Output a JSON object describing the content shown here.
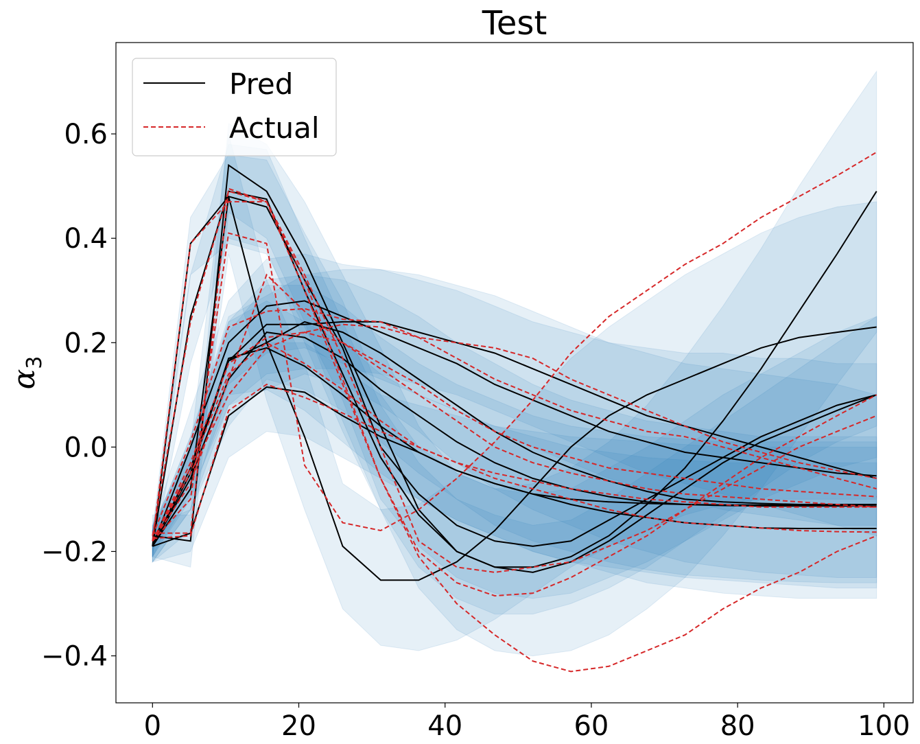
{
  "chart_data": {
    "type": "line",
    "title": "Test",
    "xlabel": "",
    "ylabel": "α",
    "ylabel_subscript": "3",
    "xlim": [
      -5,
      104
    ],
    "ylim": [
      -0.49,
      0.775
    ],
    "xticks": [
      0,
      20,
      40,
      60,
      80,
      100
    ],
    "xtick_labels": [
      "0",
      "20",
      "40",
      "60",
      "80",
      "100"
    ],
    "yticks": [
      -0.4,
      -0.2,
      0.0,
      0.2,
      0.4,
      0.6
    ],
    "ytick_labels": [
      "−0.4",
      "−0.2",
      "0.0",
      "0.2",
      "0.4",
      "0.6"
    ],
    "grid": false,
    "legend": {
      "placement": "top-left",
      "entries": [
        {
          "label": "Pred",
          "style": "solid",
          "color": "#000000"
        },
        {
          "label": "Actual",
          "style": "dashed",
          "color": "#d62728"
        }
      ]
    },
    "band_color": "#1f77b4",
    "x": [
      0,
      5.2,
      10.4,
      15.6,
      20.8,
      26,
      31.2,
      36.4,
      41.6,
      46.8,
      52,
      57.2,
      62.4,
      67.6,
      72.8,
      78,
      83.2,
      88.4,
      93.6,
      99
    ],
    "series": [
      {
        "pred": [
          -0.19,
          -0.165,
          0.06,
          0.115,
          0.105,
          0.06,
          0.02,
          -0.01,
          -0.045,
          -0.07,
          -0.09,
          -0.1,
          -0.105,
          -0.108,
          -0.11,
          -0.111,
          -0.111,
          -0.111,
          -0.111,
          -0.11
        ],
        "actual": [
          -0.175,
          -0.17,
          0.07,
          0.12,
          0.095,
          0.065,
          0.03,
          0,
          -0.03,
          -0.05,
          -0.065,
          -0.08,
          -0.09,
          -0.1,
          -0.105,
          -0.11,
          -0.115,
          -0.115,
          -0.115,
          -0.115
        ],
        "band_lo": [
          -0.22,
          -0.2,
          -0.02,
          0.03,
          0.02,
          -0.02,
          -0.06,
          -0.1,
          -0.14,
          -0.17,
          -0.2,
          -0.22,
          -0.23,
          -0.24,
          -0.25,
          -0.255,
          -0.26,
          -0.265,
          -0.27,
          -0.27
        ],
        "band_hi": [
          -0.15,
          -0.12,
          0.14,
          0.2,
          0.2,
          0.15,
          0.1,
          0.08,
          0.06,
          0.04,
          0.03,
          0.02,
          0.015,
          0.01,
          0.005,
          0.0,
          0.0,
          0.0,
          0.0,
          0.0
        ]
      },
      {
        "pred": [
          -0.19,
          -0.05,
          0.17,
          0.19,
          0.155,
          0.1,
          0.04,
          -0.01,
          -0.045,
          -0.07,
          -0.09,
          -0.11,
          -0.125,
          -0.135,
          -0.145,
          -0.15,
          -0.155,
          -0.156,
          -0.156,
          -0.156
        ],
        "actual": [
          -0.18,
          -0.04,
          0.14,
          0.2,
          0.16,
          0.11,
          0.05,
          0.0,
          -0.03,
          -0.06,
          -0.08,
          -0.1,
          -0.12,
          -0.135,
          -0.145,
          -0.15,
          -0.155,
          -0.16,
          -0.162,
          -0.163
        ],
        "band_lo": [
          -0.21,
          -0.1,
          0.1,
          0.11,
          0.07,
          0.01,
          -0.05,
          -0.1,
          -0.14,
          -0.17,
          -0.2,
          -0.22,
          -0.24,
          -0.26,
          -0.27,
          -0.28,
          -0.285,
          -0.29,
          -0.29,
          -0.29
        ],
        "band_hi": [
          -0.16,
          0.0,
          0.24,
          0.28,
          0.24,
          0.2,
          0.14,
          0.1,
          0.07,
          0.04,
          0.02,
          0.0,
          -0.01,
          -0.02,
          -0.025,
          -0.03,
          -0.03,
          -0.03,
          -0.03,
          -0.03
        ]
      },
      {
        "pred": [
          -0.19,
          0.0,
          0.2,
          0.27,
          0.28,
          0.25,
          0.22,
          0.19,
          0.16,
          0.12,
          0.09,
          0.06,
          0.03,
          0.01,
          -0.01,
          -0.02,
          -0.03,
          -0.04,
          -0.05,
          -0.055
        ],
        "actual": [
          -0.17,
          0.01,
          0.23,
          0.26,
          0.265,
          0.245,
          0.24,
          0.21,
          0.2,
          0.19,
          0.17,
          0.13,
          0.1,
          0.07,
          0.04,
          0.01,
          -0.01,
          -0.03,
          -0.045,
          -0.06
        ],
        "band_lo": [
          -0.21,
          -0.06,
          0.12,
          0.18,
          0.19,
          0.16,
          0.13,
          0.1,
          0.07,
          0.03,
          0.0,
          -0.03,
          -0.06,
          -0.08,
          -0.1,
          -0.12,
          -0.13,
          -0.14,
          -0.15,
          -0.15
        ],
        "band_hi": [
          -0.15,
          0.07,
          0.28,
          0.36,
          0.37,
          0.35,
          0.34,
          0.32,
          0.3,
          0.27,
          0.24,
          0.22,
          0.2,
          0.19,
          0.18,
          0.18,
          0.17,
          0.17,
          0.16,
          0.16
        ]
      },
      {
        "pred": [
          -0.19,
          -0.04,
          0.165,
          0.235,
          0.235,
          0.24,
          0.24,
          0.22,
          0.2,
          0.18,
          0.15,
          0.12,
          0.09,
          0.06,
          0.04,
          0.02,
          0.0,
          -0.02,
          -0.04,
          -0.06
        ],
        "actual": [
          -0.18,
          -0.03,
          0.16,
          0.21,
          0.22,
          0.235,
          0.23,
          0.21,
          0.17,
          0.13,
          0.1,
          0.07,
          0.05,
          0.03,
          0.02,
          0.0,
          -0.02,
          -0.04,
          -0.06,
          -0.08
        ],
        "band_lo": [
          -0.21,
          -0.09,
          0.08,
          0.14,
          0.15,
          0.15,
          0.14,
          0.12,
          0.1,
          0.07,
          0.04,
          0.01,
          -0.02,
          -0.05,
          -0.07,
          -0.09,
          -0.11,
          -0.13,
          -0.15,
          -0.17
        ],
        "band_hi": [
          -0.16,
          0.02,
          0.24,
          0.32,
          0.33,
          0.34,
          0.34,
          0.33,
          0.31,
          0.29,
          0.26,
          0.23,
          0.2,
          0.18,
          0.16,
          0.15,
          0.14,
          0.13,
          0.12,
          0.1
        ]
      },
      {
        "pred": [
          -0.19,
          0.25,
          0.49,
          0.475,
          0.3,
          0.14,
          -0.02,
          -0.13,
          -0.2,
          -0.23,
          -0.24,
          -0.22,
          -0.18,
          -0.13,
          -0.08,
          -0.03,
          0.01,
          0.04,
          0.07,
          0.1
        ],
        "actual": [
          -0.17,
          0.24,
          0.49,
          0.47,
          0.3,
          0.12,
          -0.06,
          -0.2,
          -0.26,
          -0.285,
          -0.28,
          -0.25,
          -0.21,
          -0.17,
          -0.12,
          -0.07,
          -0.02,
          0.02,
          0.06,
          0.1
        ],
        "band_lo": [
          -0.21,
          0.16,
          0.4,
          0.38,
          0.2,
          0.03,
          -0.12,
          -0.23,
          -0.29,
          -0.32,
          -0.32,
          -0.3,
          -0.27,
          -0.23,
          -0.18,
          -0.13,
          -0.08,
          -0.03,
          0.01,
          0.04
        ],
        "band_hi": [
          -0.16,
          0.33,
          0.58,
          0.57,
          0.4,
          0.24,
          0.08,
          -0.03,
          -0.1,
          -0.13,
          -0.15,
          -0.14,
          -0.1,
          -0.05,
          0.0,
          0.05,
          0.1,
          0.15,
          0.2,
          0.25
        ]
      },
      {
        "pred": [
          -0.19,
          0.39,
          0.48,
          0.46,
          0.32,
          0.19,
          0.0,
          -0.09,
          -0.15,
          -0.18,
          -0.19,
          -0.18,
          -0.14,
          -0.1,
          -0.06,
          -0.02,
          0.02,
          0.05,
          0.08,
          0.1
        ],
        "actual": [
          -0.18,
          0.39,
          0.47,
          0.47,
          0.33,
          0.17,
          0.0,
          -0.18,
          -0.23,
          -0.24,
          -0.23,
          -0.22,
          -0.19,
          -0.16,
          -0.12,
          -0.08,
          -0.04,
          0.0,
          0.03,
          0.06
        ],
        "band_lo": [
          -0.21,
          0.33,
          0.39,
          0.37,
          0.23,
          0.09,
          -0.1,
          -0.19,
          -0.25,
          -0.28,
          -0.29,
          -0.28,
          -0.25,
          -0.22,
          -0.18,
          -0.14,
          -0.1,
          -0.07,
          -0.04,
          -0.02
        ],
        "band_hi": [
          -0.16,
          0.44,
          0.56,
          0.55,
          0.41,
          0.28,
          0.1,
          0.0,
          -0.05,
          -0.08,
          -0.09,
          -0.08,
          -0.04,
          0.0,
          0.05,
          0.1,
          0.14,
          0.18,
          0.22,
          0.25
        ]
      },
      {
        "pred": [
          -0.17,
          -0.18,
          0.54,
          0.49,
          0.36,
          0.2,
          0.04,
          -0.12,
          -0.2,
          -0.23,
          -0.23,
          -0.21,
          -0.17,
          -0.11,
          -0.04,
          0.05,
          0.15,
          0.26,
          0.37,
          0.49
        ],
        "actual": [
          -0.165,
          -0.165,
          0.495,
          0.47,
          0.32,
          0.13,
          -0.06,
          -0.21,
          -0.3,
          -0.36,
          -0.41,
          -0.43,
          -0.42,
          -0.39,
          -0.36,
          -0.31,
          -0.27,
          -0.24,
          -0.2,
          -0.17
        ],
        "band_lo": [
          -0.21,
          -0.23,
          0.45,
          0.4,
          0.24,
          0.05,
          -0.12,
          -0.27,
          -0.35,
          -0.39,
          -0.4,
          -0.39,
          -0.36,
          -0.31,
          -0.25,
          -0.17,
          -0.08,
          0.02,
          0.12,
          0.22
        ],
        "band_hi": [
          -0.13,
          -0.13,
          0.62,
          0.58,
          0.47,
          0.33,
          0.19,
          0.04,
          -0.05,
          -0.08,
          -0.07,
          -0.04,
          0.01,
          0.08,
          0.17,
          0.27,
          0.38,
          0.5,
          0.61,
          0.72
        ]
      },
      {
        "pred": [
          -0.19,
          -0.08,
          0.48,
          0.2,
          0.02,
          -0.19,
          -0.255,
          -0.255,
          -0.22,
          -0.16,
          -0.08,
          0.0,
          0.06,
          0.1,
          0.13,
          0.16,
          0.19,
          0.21,
          0.22,
          0.23
        ],
        "actual": [
          -0.18,
          -0.1,
          0.41,
          0.39,
          -0.035,
          -0.145,
          -0.16,
          -0.12,
          -0.06,
          0.01,
          0.09,
          0.18,
          0.25,
          0.3,
          0.35,
          0.39,
          0.44,
          0.48,
          0.52,
          0.565
        ],
        "band_lo": [
          -0.22,
          -0.16,
          0.37,
          0.09,
          -0.12,
          -0.31,
          -0.38,
          -0.39,
          -0.37,
          -0.33,
          -0.28,
          -0.23,
          -0.19,
          -0.16,
          -0.13,
          -0.11,
          -0.1,
          -0.1,
          -0.1,
          -0.1
        ],
        "band_hi": [
          -0.15,
          0.0,
          0.6,
          0.32,
          0.16,
          -0.07,
          -0.12,
          -0.11,
          -0.06,
          0.01,
          0.09,
          0.17,
          0.23,
          0.28,
          0.33,
          0.37,
          0.41,
          0.44,
          0.46,
          0.47
        ]
      },
      {
        "pred": [
          -0.19,
          -0.05,
          0.165,
          0.2,
          0.24,
          0.22,
          0.18,
          0.13,
          0.08,
          0.03,
          -0.01,
          -0.04,
          -0.065,
          -0.085,
          -0.1,
          -0.105,
          -0.108,
          -0.11,
          -0.11,
          -0.11
        ],
        "actual": [
          -0.18,
          -0.07,
          0.13,
          0.33,
          0.26,
          0.2,
          0.16,
          0.12,
          0.07,
          0.03,
          0.0,
          -0.02,
          -0.04,
          -0.05,
          -0.06,
          -0.07,
          -0.08,
          -0.085,
          -0.09,
          -0.095
        ],
        "band_lo": [
          -0.22,
          -0.12,
          0.08,
          0.11,
          0.14,
          0.12,
          0.08,
          0.03,
          -0.03,
          -0.08,
          -0.12,
          -0.15,
          -0.18,
          -0.2,
          -0.22,
          -0.23,
          -0.24,
          -0.245,
          -0.25,
          -0.25
        ],
        "band_hi": [
          -0.16,
          0.02,
          0.25,
          0.29,
          0.33,
          0.32,
          0.29,
          0.25,
          0.2,
          0.16,
          0.12,
          0.09,
          0.07,
          0.05,
          0.04,
          0.03,
          0.02,
          0.02,
          0.02,
          0.02
        ]
      },
      {
        "pred": [
          -0.19,
          -0.06,
          0.13,
          0.22,
          0.21,
          0.17,
          0.11,
          0.06,
          0.01,
          -0.03,
          -0.06,
          -0.08,
          -0.095,
          -0.105,
          -0.11,
          -0.112,
          -0.113,
          -0.113,
          -0.113,
          -0.113
        ],
        "actual": [
          -0.18,
          -0.05,
          0.1,
          0.19,
          0.22,
          0.2,
          0.15,
          0.1,
          0.05,
          0.0,
          -0.03,
          -0.05,
          -0.065,
          -0.08,
          -0.09,
          -0.095,
          -0.1,
          -0.105,
          -0.11,
          -0.115
        ],
        "band_lo": [
          -0.22,
          -0.12,
          0.04,
          0.13,
          0.11,
          0.07,
          0.01,
          -0.05,
          -0.1,
          -0.15,
          -0.18,
          -0.2,
          -0.22,
          -0.235,
          -0.245,
          -0.25,
          -0.255,
          -0.258,
          -0.26,
          -0.26
        ],
        "band_hi": [
          -0.16,
          0.0,
          0.22,
          0.31,
          0.31,
          0.27,
          0.21,
          0.16,
          0.12,
          0.09,
          0.06,
          0.04,
          0.03,
          0.02,
          0.015,
          0.01,
          0.01,
          0.01,
          0.01,
          0.01
        ]
      }
    ]
  }
}
